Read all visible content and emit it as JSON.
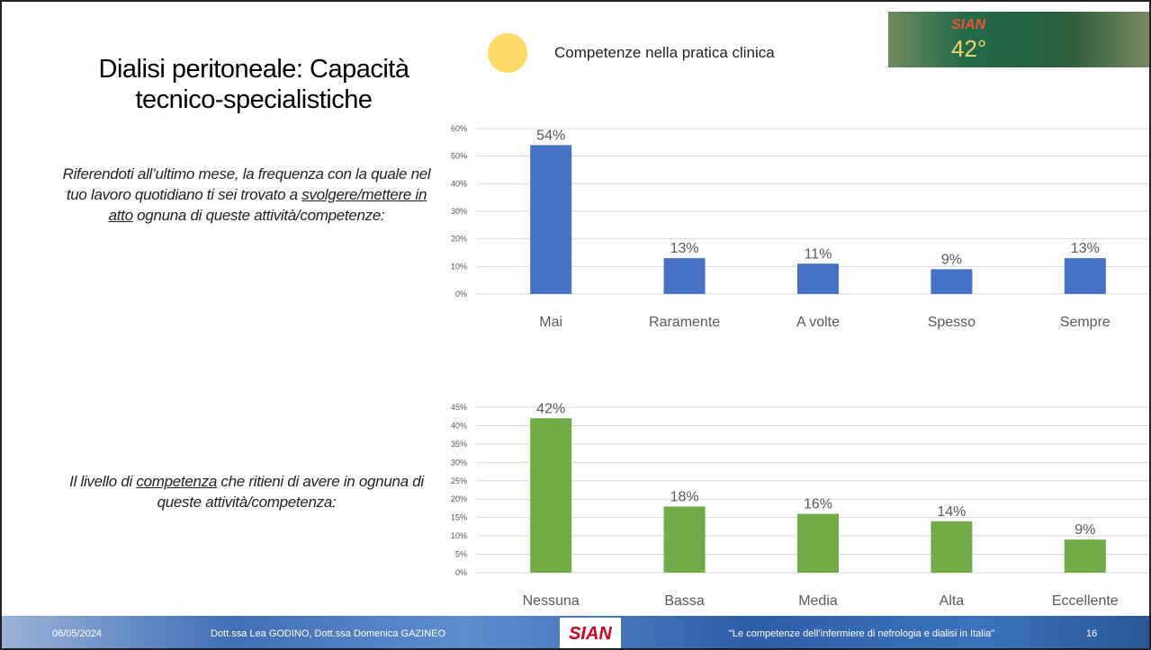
{
  "slide": {
    "title": "Dialisi peritoneale: Capacità tecnico-specialistiche",
    "legend": "Competenze nella pratica clinica",
    "prompt1": [
      "Riferendoti all’ultimo mese, la frequenza con la quale nel tuo lavoro quotidiano ti sei trovato a ",
      "svolgere/mettere in atto",
      " ognuna di queste attività/competenze:"
    ],
    "prompt2": [
      "Il livello di ",
      "competenza",
      " che ritieni di avere in ognuna di queste attività/competenza:"
    ],
    "logo": {
      "brand": "SIAN",
      "edition": "42°"
    },
    "footer": {
      "date": "06/05/2024",
      "authors": "Dott.ssa Lea GODINO, Dott.ssa Domenica GAZINEO",
      "brand": "SIAN",
      "quote": "\"Le competenze dell’infermiere di nefrologia e dialisi in Italia\"",
      "page": "16"
    }
  },
  "chart_data": [
    {
      "type": "bar",
      "categories": [
        "Mai",
        "Raramente",
        "A volte",
        "Spesso",
        "Sempre"
      ],
      "values": [
        54,
        13,
        11,
        9,
        13
      ],
      "value_labels": [
        "54%",
        "13%",
        "11%",
        "9%",
        "13%"
      ],
      "color": "#4472c4",
      "ylim": [
        0,
        60
      ],
      "grid": true,
      "yticks": [
        {
          "value": 0,
          "label": "0%"
        },
        {
          "value": 10,
          "label": "10%"
        },
        {
          "value": 20,
          "label": "20%"
        },
        {
          "value": 30,
          "label": "30%"
        },
        {
          "value": 40,
          "label": "40%"
        },
        {
          "value": 50,
          "label": "50%"
        },
        {
          "value": 60,
          "label": "60%"
        }
      ]
    },
    {
      "type": "bar",
      "categories": [
        "Nessuna",
        "Bassa",
        "Media",
        "Alta",
        "Eccellente"
      ],
      "values": [
        42,
        18,
        16,
        14,
        9
      ],
      "value_labels": [
        "42%",
        "18%",
        "16%",
        "14%",
        "9%"
      ],
      "color": "#70ad47",
      "ylim": [
        0,
        45
      ],
      "grid": true,
      "yticks": [
        {
          "value": 0,
          "label": "0%"
        },
        {
          "value": 5,
          "label": "5%"
        },
        {
          "value": 10,
          "label": "10%"
        },
        {
          "value": 15,
          "label": "15%"
        },
        {
          "value": 20,
          "label": "20%"
        },
        {
          "value": 25,
          "label": "25%"
        },
        {
          "value": 30,
          "label": "30%"
        },
        {
          "value": 35,
          "label": "35%"
        },
        {
          "value": 40,
          "label": "40%"
        },
        {
          "value": 45,
          "label": "45%"
        }
      ]
    }
  ]
}
